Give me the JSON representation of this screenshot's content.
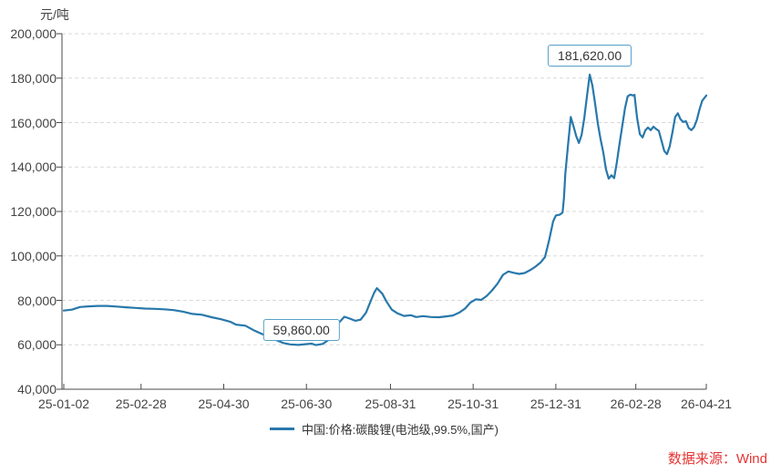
{
  "unit_label": "元/吨",
  "source_label": "数据来源：Wind",
  "legend": {
    "series_label": "中国:价格:碳酸锂(电池级,99.5%,国产)"
  },
  "colors": {
    "line": "#2878ab",
    "callout_border": "#58a0ca",
    "grid": "#d9d9d9",
    "axis": "#4a4a4a",
    "tick_text": "#444444",
    "source_red": "#e73333"
  },
  "chart_data": {
    "type": "line",
    "title": "",
    "xlabel": "",
    "ylabel": "元/吨",
    "ylim": [
      40000,
      200000
    ],
    "x_range": [
      "2025-01-02",
      "2026-04-21"
    ],
    "grid": "horizontal-dashed",
    "legend_position": "bottom",
    "yticks": [
      {
        "label": "200,000",
        "value": 200000
      },
      {
        "label": "180,000",
        "value": 180000
      },
      {
        "label": "160,000",
        "value": 160000
      },
      {
        "label": "140,000",
        "value": 140000
      },
      {
        "label": "120,000",
        "value": 120000
      },
      {
        "label": "100,000",
        "value": 100000
      },
      {
        "label": "80,000",
        "value": 80000
      },
      {
        "label": "60,000",
        "value": 60000
      },
      {
        "label": "40,000",
        "value": 40000
      }
    ],
    "xticks": [
      {
        "label": "25-01-02",
        "date": "2025-01-02"
      },
      {
        "label": "25-02-28",
        "date": "2025-02-28"
      },
      {
        "label": "25-04-30",
        "date": "2025-04-30"
      },
      {
        "label": "25-06-30",
        "date": "2025-06-30"
      },
      {
        "label": "25-08-31",
        "date": "2025-08-31"
      },
      {
        "label": "25-10-31",
        "date": "2025-10-31"
      },
      {
        "label": "25-12-31",
        "date": "2025-12-31"
      },
      {
        "label": "26-02-28",
        "date": "2026-02-28"
      },
      {
        "label": "26-04-21",
        "date": "2026-04-21"
      }
    ],
    "annotations": [
      {
        "label": "59,860.00",
        "date": "2025-07-07",
        "value": 59860
      },
      {
        "label": "181,620.00",
        "date": "2026-01-25",
        "value": 181620
      }
    ],
    "series": [
      {
        "name": "中国:价格:碳酸锂(电池级,99.5%,国产)",
        "color": "#2878ab",
        "points": [
          [
            "2025-01-02",
            75400
          ],
          [
            "2025-01-08",
            75800
          ],
          [
            "2025-01-14",
            77000
          ],
          [
            "2025-01-20",
            77300
          ],
          [
            "2025-01-27",
            77500
          ],
          [
            "2025-02-03",
            77500
          ],
          [
            "2025-02-10",
            77200
          ],
          [
            "2025-02-17",
            76900
          ],
          [
            "2025-02-24",
            76600
          ],
          [
            "2025-03-03",
            76300
          ],
          [
            "2025-03-10",
            76200
          ],
          [
            "2025-03-17",
            76000
          ],
          [
            "2025-03-24",
            75600
          ],
          [
            "2025-03-31",
            74900
          ],
          [
            "2025-04-07",
            73900
          ],
          [
            "2025-04-14",
            73500
          ],
          [
            "2025-04-21",
            72400
          ],
          [
            "2025-04-28",
            71500
          ],
          [
            "2025-05-05",
            70300
          ],
          [
            "2025-05-09",
            69100
          ],
          [
            "2025-05-16",
            68600
          ],
          [
            "2025-05-22",
            66600
          ],
          [
            "2025-05-28",
            64900
          ],
          [
            "2025-06-03",
            63300
          ],
          [
            "2025-06-09",
            61800
          ],
          [
            "2025-06-13",
            60800
          ],
          [
            "2025-06-18",
            60200
          ],
          [
            "2025-06-24",
            59950
          ],
          [
            "2025-06-30",
            60300
          ],
          [
            "2025-07-04",
            60500
          ],
          [
            "2025-07-07",
            59860
          ],
          [
            "2025-07-12",
            60400
          ],
          [
            "2025-07-17",
            62500
          ],
          [
            "2025-07-21",
            66500
          ],
          [
            "2025-07-24",
            70000
          ],
          [
            "2025-07-28",
            72600
          ],
          [
            "2025-08-01",
            71800
          ],
          [
            "2025-08-05",
            70800
          ],
          [
            "2025-08-09",
            71300
          ],
          [
            "2025-08-13",
            74500
          ],
          [
            "2025-08-16",
            79000
          ],
          [
            "2025-08-19",
            83500
          ],
          [
            "2025-08-21",
            85500
          ],
          [
            "2025-08-25",
            83000
          ],
          [
            "2025-08-28",
            79500
          ],
          [
            "2025-09-01",
            75800
          ],
          [
            "2025-09-05",
            74200
          ],
          [
            "2025-09-10",
            73000
          ],
          [
            "2025-09-15",
            73300
          ],
          [
            "2025-09-19",
            72500
          ],
          [
            "2025-09-24",
            72900
          ],
          [
            "2025-09-30",
            72500
          ],
          [
            "2025-10-06",
            72400
          ],
          [
            "2025-10-11",
            72800
          ],
          [
            "2025-10-16",
            73200
          ],
          [
            "2025-10-21",
            74600
          ],
          [
            "2025-10-25",
            76300
          ],
          [
            "2025-10-29",
            79000
          ],
          [
            "2025-11-02",
            80500
          ],
          [
            "2025-11-06",
            80200
          ],
          [
            "2025-11-10",
            82000
          ],
          [
            "2025-11-14",
            84500
          ],
          [
            "2025-11-18",
            87500
          ],
          [
            "2025-11-22",
            91500
          ],
          [
            "2025-11-26",
            93000
          ],
          [
            "2025-11-30",
            92400
          ],
          [
            "2025-12-04",
            91900
          ],
          [
            "2025-12-08",
            92300
          ],
          [
            "2025-12-12",
            93600
          ],
          [
            "2025-12-16",
            95200
          ],
          [
            "2025-12-20",
            97200
          ],
          [
            "2025-12-23",
            99500
          ],
          [
            "2025-12-26",
            107000
          ],
          [
            "2025-12-29",
            115500
          ],
          [
            "2025-12-31",
            118200
          ],
          [
            "2026-01-03",
            118600
          ],
          [
            "2026-01-05",
            119500
          ],
          [
            "2026-01-06",
            126000
          ],
          [
            "2026-01-07",
            137000
          ],
          [
            "2026-01-09",
            150000
          ],
          [
            "2026-01-11",
            162500
          ],
          [
            "2026-01-13",
            158500
          ],
          [
            "2026-01-15",
            154000
          ],
          [
            "2026-01-17",
            150800
          ],
          [
            "2026-01-19",
            154500
          ],
          [
            "2026-01-21",
            162000
          ],
          [
            "2026-01-23",
            172000
          ],
          [
            "2026-01-25",
            181620
          ],
          [
            "2026-01-27",
            176500
          ],
          [
            "2026-01-29",
            168500
          ],
          [
            "2026-01-31",
            159500
          ],
          [
            "2026-02-02",
            152500
          ],
          [
            "2026-02-04",
            146500
          ],
          [
            "2026-02-06",
            139000
          ],
          [
            "2026-02-08",
            134800
          ],
          [
            "2026-02-10",
            136300
          ],
          [
            "2026-02-12",
            135000
          ],
          [
            "2026-02-14",
            142000
          ],
          [
            "2026-02-16",
            150500
          ],
          [
            "2026-02-18",
            158500
          ],
          [
            "2026-02-20",
            166500
          ],
          [
            "2026-02-22",
            171800
          ],
          [
            "2026-02-24",
            172600
          ],
          [
            "2026-02-26",
            172200
          ],
          [
            "2026-02-27",
            172500
          ],
          [
            "2026-03-01",
            162000
          ],
          [
            "2026-03-03",
            154800
          ],
          [
            "2026-03-05",
            153300
          ],
          [
            "2026-03-07",
            156500
          ],
          [
            "2026-03-09",
            157800
          ],
          [
            "2026-03-11",
            156600
          ],
          [
            "2026-03-13",
            158200
          ],
          [
            "2026-03-15",
            157100
          ],
          [
            "2026-03-17",
            156300
          ],
          [
            "2026-03-19",
            151800
          ],
          [
            "2026-03-21",
            147200
          ],
          [
            "2026-03-23",
            145800
          ],
          [
            "2026-03-25",
            149200
          ],
          [
            "2026-03-27",
            155500
          ],
          [
            "2026-03-29",
            162500
          ],
          [
            "2026-03-31",
            164200
          ],
          [
            "2026-04-02",
            161500
          ],
          [
            "2026-04-04",
            160300
          ],
          [
            "2026-04-06",
            160600
          ],
          [
            "2026-04-08",
            157600
          ],
          [
            "2026-04-10",
            156600
          ],
          [
            "2026-04-12",
            158000
          ],
          [
            "2026-04-14",
            161200
          ],
          [
            "2026-04-16",
            166000
          ],
          [
            "2026-04-18",
            169800
          ],
          [
            "2026-04-21",
            172200
          ]
        ]
      }
    ]
  }
}
